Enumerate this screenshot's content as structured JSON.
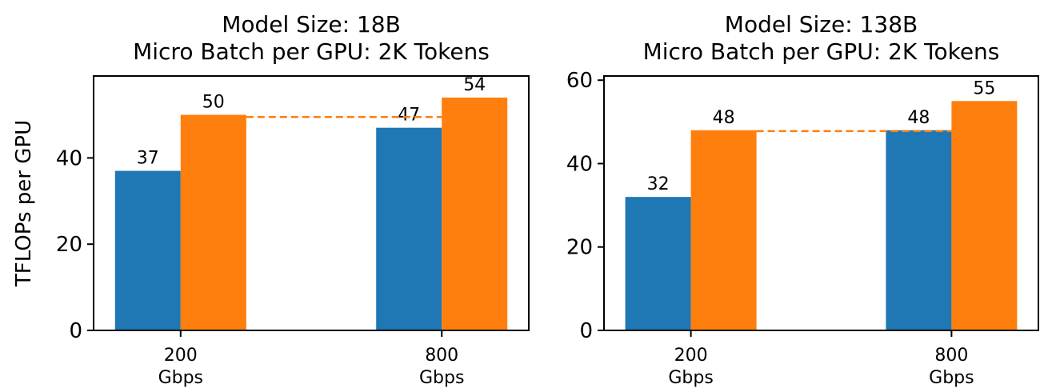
{
  "chart_data": [
    {
      "type": "bar",
      "title": "Model Size: 18B\nMicro Batch per GPU: 2K Tokens",
      "ylabel": "TFLOPs per GPU",
      "categories": [
        "200\nGbps",
        "800\nGbps"
      ],
      "series": [
        {
          "values": [
            37,
            47
          ],
          "labels": [
            "37",
            "47"
          ],
          "color": "#1f77b4"
        },
        {
          "values": [
            50,
            54
          ],
          "labels": [
            "50",
            "54"
          ],
          "color": "#ff7f0e"
        }
      ],
      "ylim": [
        0,
        59
      ],
      "yticks": [
        0,
        20,
        40
      ],
      "reference_line": {
        "value": 49.5,
        "style": "dashed",
        "color": "#ff7f0e"
      }
    },
    {
      "type": "bar",
      "title": "Model Size: 138B\nMicro Batch per GPU: 2K Tokens",
      "ylabel": "",
      "categories": [
        "200\nGbps",
        "800\nGbps"
      ],
      "series": [
        {
          "values": [
            32,
            48
          ],
          "labels": [
            "32",
            "48"
          ],
          "color": "#1f77b4"
        },
        {
          "values": [
            48,
            55
          ],
          "labels": [
            "48",
            "55"
          ],
          "color": "#ff7f0e"
        }
      ],
      "ylim": [
        0,
        61
      ],
      "yticks": [
        0,
        20,
        40,
        60
      ],
      "reference_line": {
        "value": 47.8,
        "style": "dashed",
        "color": "#ff7f0e"
      }
    }
  ]
}
